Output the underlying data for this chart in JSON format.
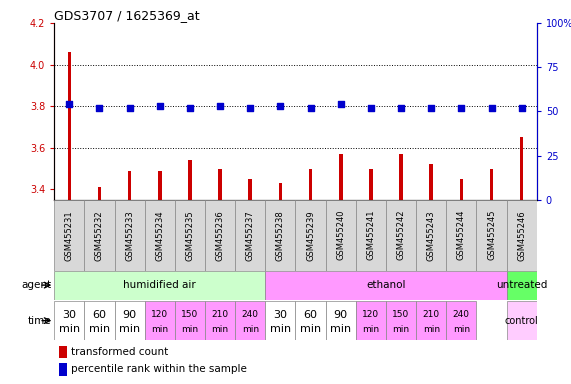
{
  "title": "GDS3707 / 1625369_at",
  "samples": [
    "GSM455231",
    "GSM455232",
    "GSM455233",
    "GSM455234",
    "GSM455235",
    "GSM455236",
    "GSM455237",
    "GSM455238",
    "GSM455239",
    "GSM455240",
    "GSM455241",
    "GSM455242",
    "GSM455243",
    "GSM455244",
    "GSM455245",
    "GSM455246"
  ],
  "transformed_count": [
    4.06,
    3.41,
    3.49,
    3.49,
    3.54,
    3.5,
    3.45,
    3.43,
    3.5,
    3.57,
    3.5,
    3.57,
    3.52,
    3.45,
    3.5,
    3.65
  ],
  "percentile_rank": [
    54,
    52,
    52,
    53,
    52,
    53,
    52,
    53,
    52,
    54,
    52,
    52,
    52,
    52,
    52,
    52
  ],
  "ylim_left": [
    3.35,
    4.2
  ],
  "ylim_right": [
    0,
    100
  ],
  "yticks_left": [
    3.4,
    3.6,
    3.8,
    4.0,
    4.2
  ],
  "yticks_right": [
    0,
    25,
    50,
    75,
    100
  ],
  "bar_color": "#cc0000",
  "marker_color": "#0000cc",
  "agent_groups": [
    {
      "label": "humidified air",
      "start": 0,
      "end": 7,
      "color": "#ccffcc"
    },
    {
      "label": "ethanol",
      "start": 7,
      "end": 15,
      "color": "#ff99ff"
    },
    {
      "label": "untreated",
      "start": 15,
      "end": 16,
      "color": "#66ff66"
    }
  ],
  "time_groups": [
    {
      "label": "30\nmin",
      "col": 0,
      "color": "#ffffff",
      "fontsize": 8
    },
    {
      "label": "60\nmin",
      "col": 1,
      "color": "#ffffff",
      "fontsize": 8
    },
    {
      "label": "90\nmin",
      "col": 2,
      "color": "#ffffff",
      "fontsize": 8
    },
    {
      "label": "120\nmin",
      "col": 3,
      "color": "#ff99ff",
      "fontsize": 6.5
    },
    {
      "label": "150\nmin",
      "col": 4,
      "color": "#ff99ff",
      "fontsize": 6.5
    },
    {
      "label": "210\nmin",
      "col": 5,
      "color": "#ff99ff",
      "fontsize": 6.5
    },
    {
      "label": "240\nmin",
      "col": 6,
      "color": "#ff99ff",
      "fontsize": 6.5
    },
    {
      "label": "30\nmin",
      "col": 7,
      "color": "#ffffff",
      "fontsize": 8
    },
    {
      "label": "60\nmin",
      "col": 8,
      "color": "#ffffff",
      "fontsize": 8
    },
    {
      "label": "90\nmin",
      "col": 9,
      "color": "#ffffff",
      "fontsize": 8
    },
    {
      "label": "120\nmin",
      "col": 10,
      "color": "#ff99ff",
      "fontsize": 6.5
    },
    {
      "label": "150\nmin",
      "col": 11,
      "color": "#ff99ff",
      "fontsize": 6.5
    },
    {
      "label": "210\nmin",
      "col": 12,
      "color": "#ff99ff",
      "fontsize": 6.5
    },
    {
      "label": "240\nmin",
      "col": 13,
      "color": "#ff99ff",
      "fontsize": 6.5
    },
    {
      "label": "control",
      "col": 15,
      "color": "#ffccff",
      "fontsize": 7
    }
  ],
  "bg_color": "#ffffff",
  "sample_fontsize": 6,
  "bar_width": 0.12
}
